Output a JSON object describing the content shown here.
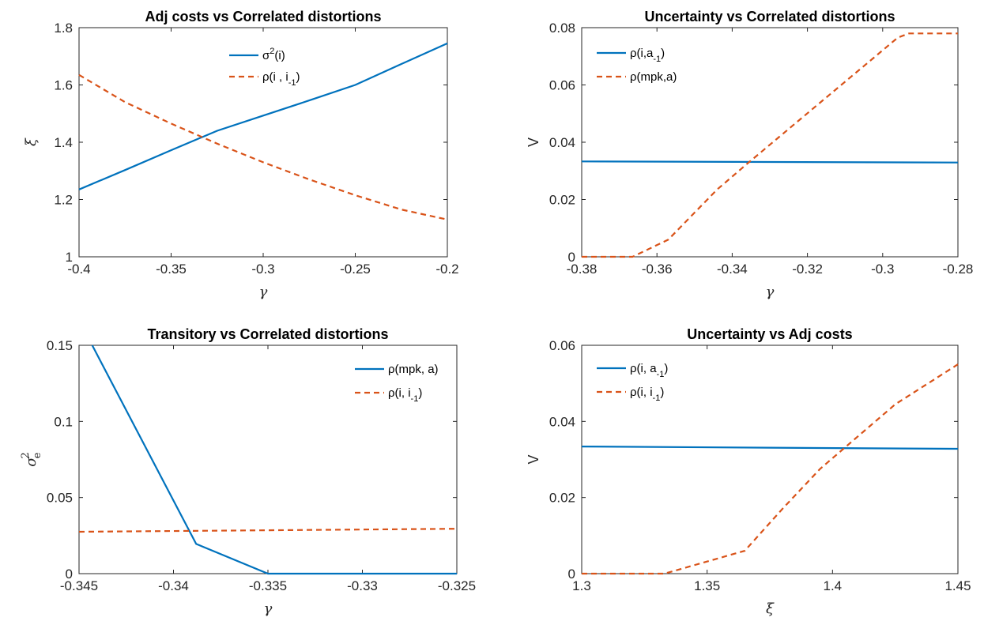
{
  "colors": {
    "blue": "#0072BD",
    "orange": "#D95319",
    "axis": "#262626"
  },
  "chart_data": [
    {
      "type": "line",
      "title": "Adj costs vs Correlated distortions",
      "xlabel": "γ",
      "ylabel": "ξ",
      "xlim": [
        -0.4,
        -0.2
      ],
      "ylim": [
        1,
        1.8
      ],
      "xticks": [
        -0.4,
        -0.35,
        -0.3,
        -0.25,
        -0.2
      ],
      "xtick_labels": [
        "-0.4",
        "-0.35",
        "-0.3",
        "-0.25",
        "-0.2"
      ],
      "yticks": [
        1,
        1.2,
        1.4,
        1.6,
        1.8
      ],
      "ytick_labels": [
        "1",
        "1.2",
        "1.4",
        "1.6",
        "1.8"
      ],
      "legend_position": "top-center",
      "series": [
        {
          "name": "σ²(i)",
          "name_base": "σ",
          "name_sup": "2",
          "name_rest": "(i)",
          "style": "solid",
          "color": "#0072BD",
          "x": [
            -0.4,
            -0.375,
            -0.35,
            -0.325,
            -0.3,
            -0.275,
            -0.25,
            -0.225,
            -0.2
          ],
          "y": [
            1.235,
            1.303,
            1.372,
            1.44,
            1.493,
            1.546,
            1.6,
            1.673,
            1.745
          ]
        },
        {
          "name": "ρ(i , i-1)",
          "name_base": "ρ(i , i",
          "name_sub": "-1",
          "name_rest": ")",
          "style": "dashed",
          "color": "#D95319",
          "x": [
            -0.4,
            -0.375,
            -0.35,
            -0.325,
            -0.3,
            -0.275,
            -0.25,
            -0.225,
            -0.2
          ],
          "y": [
            1.635,
            1.54,
            1.465,
            1.395,
            1.33,
            1.27,
            1.215,
            1.165,
            1.13
          ]
        }
      ]
    },
    {
      "type": "line",
      "title": "Uncertainty vs Correlated distortions",
      "xlabel": "γ",
      "ylabel": "V",
      "xlim": [
        -0.38,
        -0.28
      ],
      "ylim": [
        0,
        0.08
      ],
      "xticks": [
        -0.38,
        -0.36,
        -0.34,
        -0.32,
        -0.3,
        -0.28
      ],
      "xtick_labels": [
        "-0.38",
        "-0.36",
        "-0.34",
        "-0.32",
        "-0.3",
        "-0.28"
      ],
      "yticks": [
        0,
        0.02,
        0.04,
        0.06,
        0.08
      ],
      "ytick_labels": [
        "0",
        "0.02",
        "0.04",
        "0.06",
        "0.08"
      ],
      "legend_position": "top-left",
      "series": [
        {
          "name": "ρ(i,a-1)",
          "name_base": "ρ(i,a",
          "name_sub": "-1",
          "name_rest": ")",
          "style": "solid",
          "color": "#0072BD",
          "x": [
            -0.38,
            -0.33,
            -0.28
          ],
          "y": [
            0.0333,
            0.0331,
            0.0329
          ]
        },
        {
          "name": "ρ(mpk,a)",
          "name_base": "ρ(mpk,a)",
          "style": "dashed",
          "color": "#D95319",
          "x": [
            -0.38,
            -0.3665,
            -0.357,
            -0.344,
            -0.336,
            -0.326,
            -0.316,
            -0.306,
            -0.296,
            -0.293,
            -0.28
          ],
          "y": [
            0,
            0,
            0.006,
            0.0235,
            0.0325,
            0.0435,
            0.0545,
            0.0655,
            0.0765,
            0.078,
            0.078
          ]
        }
      ]
    },
    {
      "type": "line",
      "title": "Transitory vs Correlated distortions",
      "xlabel": "γ",
      "ylabel": "σe²",
      "xlim": [
        -0.345,
        -0.325
      ],
      "ylim": [
        0,
        0.15
      ],
      "xticks": [
        -0.345,
        -0.34,
        -0.335,
        -0.33,
        -0.325
      ],
      "xtick_labels": [
        "-0.345",
        "-0.34",
        "-0.335",
        "-0.33",
        "-0.325"
      ],
      "yticks": [
        0,
        0.05,
        0.1,
        0.15
      ],
      "ytick_labels": [
        "0",
        "0.05",
        "0.1",
        "0.15"
      ],
      "legend_position": "top-right",
      "series": [
        {
          "name": "ρ(mpk, a)",
          "name_base": "ρ(mpk, a)",
          "style": "solid",
          "color": "#0072BD",
          "x": [
            -0.3443,
            -0.3388,
            -0.335,
            -0.325
          ],
          "y": [
            0.15,
            0.0195,
            0,
            0
          ]
        },
        {
          "name": "ρ(i, i-1)",
          "name_base": "ρ(i, i",
          "name_sub": "-1",
          "name_rest": ")",
          "style": "dashed",
          "color": "#D95319",
          "x": [
            -0.345,
            -0.325
          ],
          "y": [
            0.0275,
            0.0295
          ]
        }
      ]
    },
    {
      "type": "line",
      "title": "Uncertainty vs Adj costs",
      "xlabel": "ξ",
      "ylabel": "V",
      "xlim": [
        1.3,
        1.45
      ],
      "ylim": [
        0,
        0.06
      ],
      "xticks": [
        1.3,
        1.35,
        1.4,
        1.45
      ],
      "xtick_labels": [
        "1.3",
        "1.35",
        "1.4",
        "1.45"
      ],
      "yticks": [
        0,
        0.02,
        0.04,
        0.06
      ],
      "ytick_labels": [
        "0",
        "0.02",
        "0.04",
        "0.06"
      ],
      "legend_position": "top-left",
      "series": [
        {
          "name": "ρ(i, a-1)",
          "name_base": "ρ(i, a",
          "name_sub": "-1",
          "name_rest": ")",
          "style": "solid",
          "color": "#0072BD",
          "x": [
            1.3,
            1.375,
            1.45
          ],
          "y": [
            0.0334,
            0.0331,
            0.0328
          ]
        },
        {
          "name": "ρ(i, i-1)",
          "name_base": "ρ(i, i",
          "name_sub": "-1",
          "name_rest": ")",
          "style": "dashed",
          "color": "#D95319",
          "x": [
            1.3,
            1.333,
            1.365,
            1.38,
            1.395,
            1.41,
            1.425,
            1.45
          ],
          "y": [
            0,
            0,
            0.006,
            0.017,
            0.0275,
            0.036,
            0.0445,
            0.055
          ]
        }
      ]
    }
  ]
}
